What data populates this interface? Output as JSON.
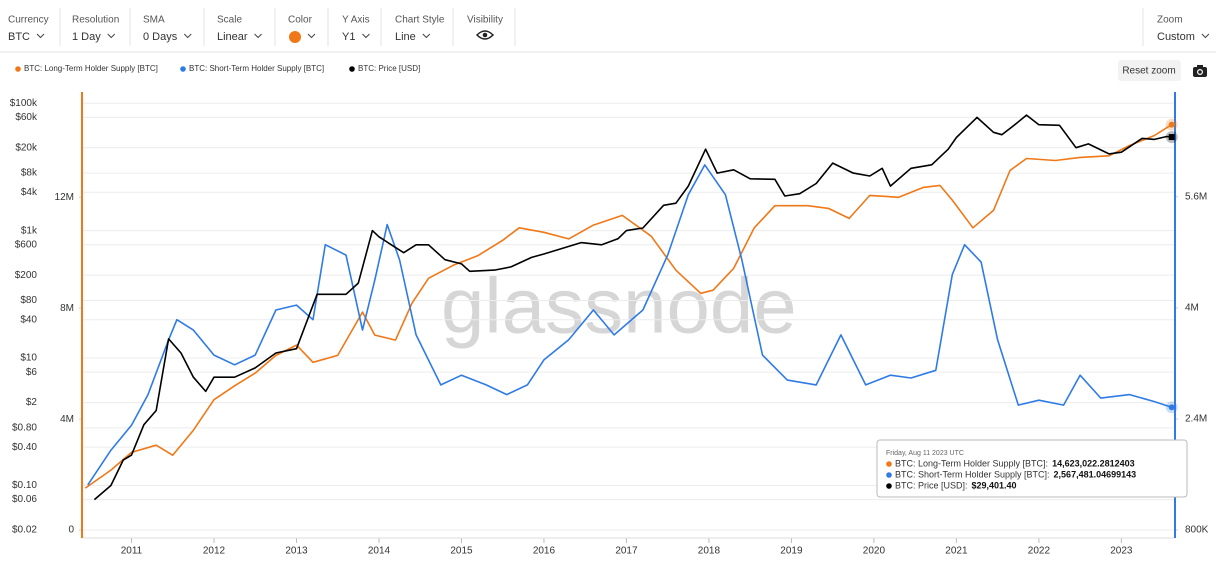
{
  "toolbar": [
    {
      "label": "Currency",
      "value": "BTC"
    },
    {
      "label": "Resolution",
      "value": "1 Day"
    },
    {
      "label": "SMA",
      "value": "0 Days"
    },
    {
      "label": "Scale",
      "value": "Linear"
    },
    {
      "label": "Color",
      "color": "#f07818"
    },
    {
      "label": "Y Axis",
      "value": "Y1"
    },
    {
      "label": "Chart Style",
      "value": "Line"
    },
    {
      "label": "Visibility"
    }
  ],
  "zoom": {
    "label": "Zoom",
    "value": "Custom"
  },
  "reset_zoom": "Reset zoom",
  "watermark": "glassnode",
  "chart_data": {
    "type": "line",
    "xlim": [
      2010.4,
      2023.65
    ],
    "xticks": [
      2011,
      2012,
      2013,
      2014,
      2015,
      2016,
      2017,
      2018,
      2019,
      2020,
      2021,
      2022,
      2023
    ],
    "ylim": [
      0.02,
      150000
    ],
    "log_scale_y": true,
    "grid": true,
    "yticks": [
      {
        "value": 100000,
        "label": "$100k"
      },
      {
        "value": 60000,
        "label": "$60k"
      },
      {
        "value": 20000,
        "label": "$20k"
      },
      {
        "value": 8000,
        "label": "$8k"
      },
      {
        "value": 4000,
        "label": "$4k"
      },
      {
        "value": 1000,
        "label": "$1k"
      },
      {
        "value": 600,
        "label": "$600"
      },
      {
        "value": 200,
        "label": "$200"
      },
      {
        "value": 80,
        "label": "$80"
      },
      {
        "value": 40,
        "label": "$40"
      },
      {
        "value": 10,
        "label": "$10"
      },
      {
        "value": 6,
        "label": "$6"
      },
      {
        "value": 2,
        "label": "$2"
      },
      {
        "value": 0.8,
        "label": "$0.80"
      },
      {
        "value": 0.4,
        "label": "$0.40"
      },
      {
        "value": 0.1,
        "label": "$0.10"
      },
      {
        "value": 0.06,
        "label": "$0.06"
      },
      {
        "value": 0.02,
        "label": "$0.02"
      }
    ],
    "y2lim": [
      0,
      15800000
    ],
    "y2ticks": [
      0,
      {
        "value": 4000000,
        "label": "4M"
      },
      {
        "value": 8000000,
        "label": "8M"
      },
      {
        "value": 12000000,
        "label": "12M"
      }
    ],
    "y3lim": [
      800000,
      7110000
    ],
    "y3ticks": [
      {
        "value": 800000,
        "label": "800K"
      },
      {
        "value": 2400000,
        "label": "2.4M"
      },
      {
        "value": 4000000,
        "label": "4M"
      },
      {
        "value": 5600000,
        "label": "5.6M"
      }
    ],
    "series": [
      {
        "name": "BTC: Long-Term Holder Supply [BTC]",
        "color": "#f07818",
        "axis": "y2",
        "x": [
          2010.44,
          2010.75,
          2011.0,
          2011.3,
          2011.5,
          2011.75,
          2012.0,
          2012.25,
          2012.5,
          2012.75,
          2013.0,
          2013.2,
          2013.5,
          2013.8,
          2013.95,
          2014.2,
          2014.4,
          2014.6,
          2014.9,
          2015.2,
          2015.5,
          2015.7,
          2016.0,
          2016.3,
          2016.6,
          2016.95,
          2017.3,
          2017.6,
          2017.9,
          2018.05,
          2018.3,
          2018.55,
          2018.8,
          2019.2,
          2019.45,
          2019.7,
          2019.95,
          2020.3,
          2020.6,
          2020.8,
          2020.95,
          2021.2,
          2021.45,
          2021.65,
          2021.85,
          2022.2,
          2022.5,
          2022.85,
          2023.1,
          2023.4,
          2023.61
        ],
        "values": [
          1510000,
          2160000,
          2800000,
          3060000,
          2700000,
          3600000,
          4700000,
          5200000,
          5660000,
          6300000,
          6670000,
          6050000,
          6300000,
          7860000,
          7030000,
          6850000,
          8180000,
          9080000,
          9550000,
          9900000,
          10450000,
          10900000,
          10740000,
          10500000,
          11000000,
          11350000,
          10600000,
          9370000,
          8540000,
          8650000,
          9440000,
          10900000,
          11700000,
          11700000,
          11600000,
          11240000,
          12070000,
          12000000,
          12360000,
          12430000,
          11900000,
          10900000,
          11530000,
          12970000,
          13400000,
          13330000,
          13440000,
          13500000,
          13870000,
          14230000,
          14623022.2812403
        ]
      },
      {
        "name": "BTC: Short-Term Holder Supply [BTC]",
        "color": "#2f7be6",
        "axis": "y3",
        "x": [
          2010.47,
          2010.75,
          2011.0,
          2011.2,
          2011.45,
          2011.55,
          2011.75,
          2012.0,
          2012.25,
          2012.5,
          2012.75,
          2013.0,
          2013.2,
          2013.35,
          2013.6,
          2013.8,
          2013.95,
          2014.1,
          2014.25,
          2014.45,
          2014.75,
          2015.0,
          2015.3,
          2015.55,
          2015.8,
          2016.0,
          2016.3,
          2016.6,
          2016.85,
          2017.2,
          2017.5,
          2017.75,
          2017.95,
          2018.2,
          2018.4,
          2018.65,
          2018.95,
          2019.3,
          2019.6,
          2019.9,
          2020.2,
          2020.45,
          2020.75,
          2020.95,
          2021.1,
          2021.3,
          2021.5,
          2021.75,
          2022.0,
          2022.3,
          2022.5,
          2022.75,
          2023.1,
          2023.4,
          2023.61
        ],
        "values": [
          1450000,
          1950000,
          2310000,
          2750000,
          3540000,
          3830000,
          3680000,
          3320000,
          3180000,
          3320000,
          3970000,
          4040000,
          3830000,
          4910000,
          4760000,
          3680000,
          4400000,
          5200000,
          4690000,
          3610000,
          2890000,
          3030000,
          2890000,
          2750000,
          2890000,
          3250000,
          3540000,
          3970000,
          3610000,
          3970000,
          4760000,
          5630000,
          6060000,
          5630000,
          4690000,
          3320000,
          2960000,
          2890000,
          3610000,
          2890000,
          3030000,
          2990000,
          3100000,
          4480000,
          4910000,
          4660000,
          3540000,
          2600000,
          2670000,
          2600000,
          3030000,
          2700000,
          2750000,
          2650000,
          2567481.04699143
        ]
      },
      {
        "name": "BTC: Price [USD]",
        "color": "#000000",
        "axis": "y",
        "x": [
          2010.55,
          2010.75,
          2010.9,
          2011.0,
          2011.15,
          2011.3,
          2011.45,
          2011.6,
          2011.75,
          2011.9,
          2012.0,
          2012.25,
          2012.5,
          2012.75,
          2013.0,
          2013.25,
          2013.4,
          2013.6,
          2013.75,
          2013.92,
          2014.0,
          2014.15,
          2014.3,
          2014.45,
          2014.6,
          2014.8,
          2015.0,
          2015.1,
          2015.4,
          2015.6,
          2015.85,
          2016.0,
          2016.45,
          2016.7,
          2016.9,
          2017.0,
          2017.2,
          2017.45,
          2017.6,
          2017.75,
          2017.96,
          2018.1,
          2018.3,
          2018.5,
          2018.8,
          2018.92,
          2019.1,
          2019.3,
          2019.5,
          2019.75,
          2019.95,
          2020.1,
          2020.2,
          2020.45,
          2020.7,
          2020.9,
          2021.0,
          2021.25,
          2021.45,
          2021.55,
          2021.7,
          2021.85,
          2022.0,
          2022.25,
          2022.45,
          2022.6,
          2022.85,
          2023.0,
          2023.25,
          2023.4,
          2023.55,
          2023.61
        ],
        "values": [
          0.06,
          0.1,
          0.25,
          0.3,
          0.9,
          1.5,
          20,
          12,
          5,
          3,
          5,
          5,
          7,
          12,
          14,
          100,
          100,
          100,
          150,
          1000,
          800,
          600,
          450,
          600,
          600,
          350,
          300,
          230,
          240,
          270,
          380,
          430,
          650,
          600,
          750,
          1000,
          1100,
          2500,
          2700,
          5000,
          19000,
          8000,
          9000,
          6500,
          6400,
          3500,
          3800,
          5500,
          11500,
          8000,
          7200,
          9500,
          5000,
          9500,
          10800,
          19000,
          29000,
          60000,
          35000,
          32000,
          45000,
          65000,
          46000,
          45000,
          20000,
          23000,
          16000,
          17000,
          28000,
          27000,
          30000,
          29401.4
        ]
      }
    ],
    "tooltip": {
      "title": "Friday, Aug 11 2023 UTC",
      "rows": [
        {
          "label": "BTC: Long-Term Holder Supply [BTC]:",
          "value": "14,623,022.2812403"
        },
        {
          "label": "BTC: Short-Term Holder Supply [BTC]:",
          "value": "2,567,481.04699143"
        },
        {
          "label": "BTC: Price [USD]:",
          "value": "$29,401.40"
        }
      ]
    }
  }
}
